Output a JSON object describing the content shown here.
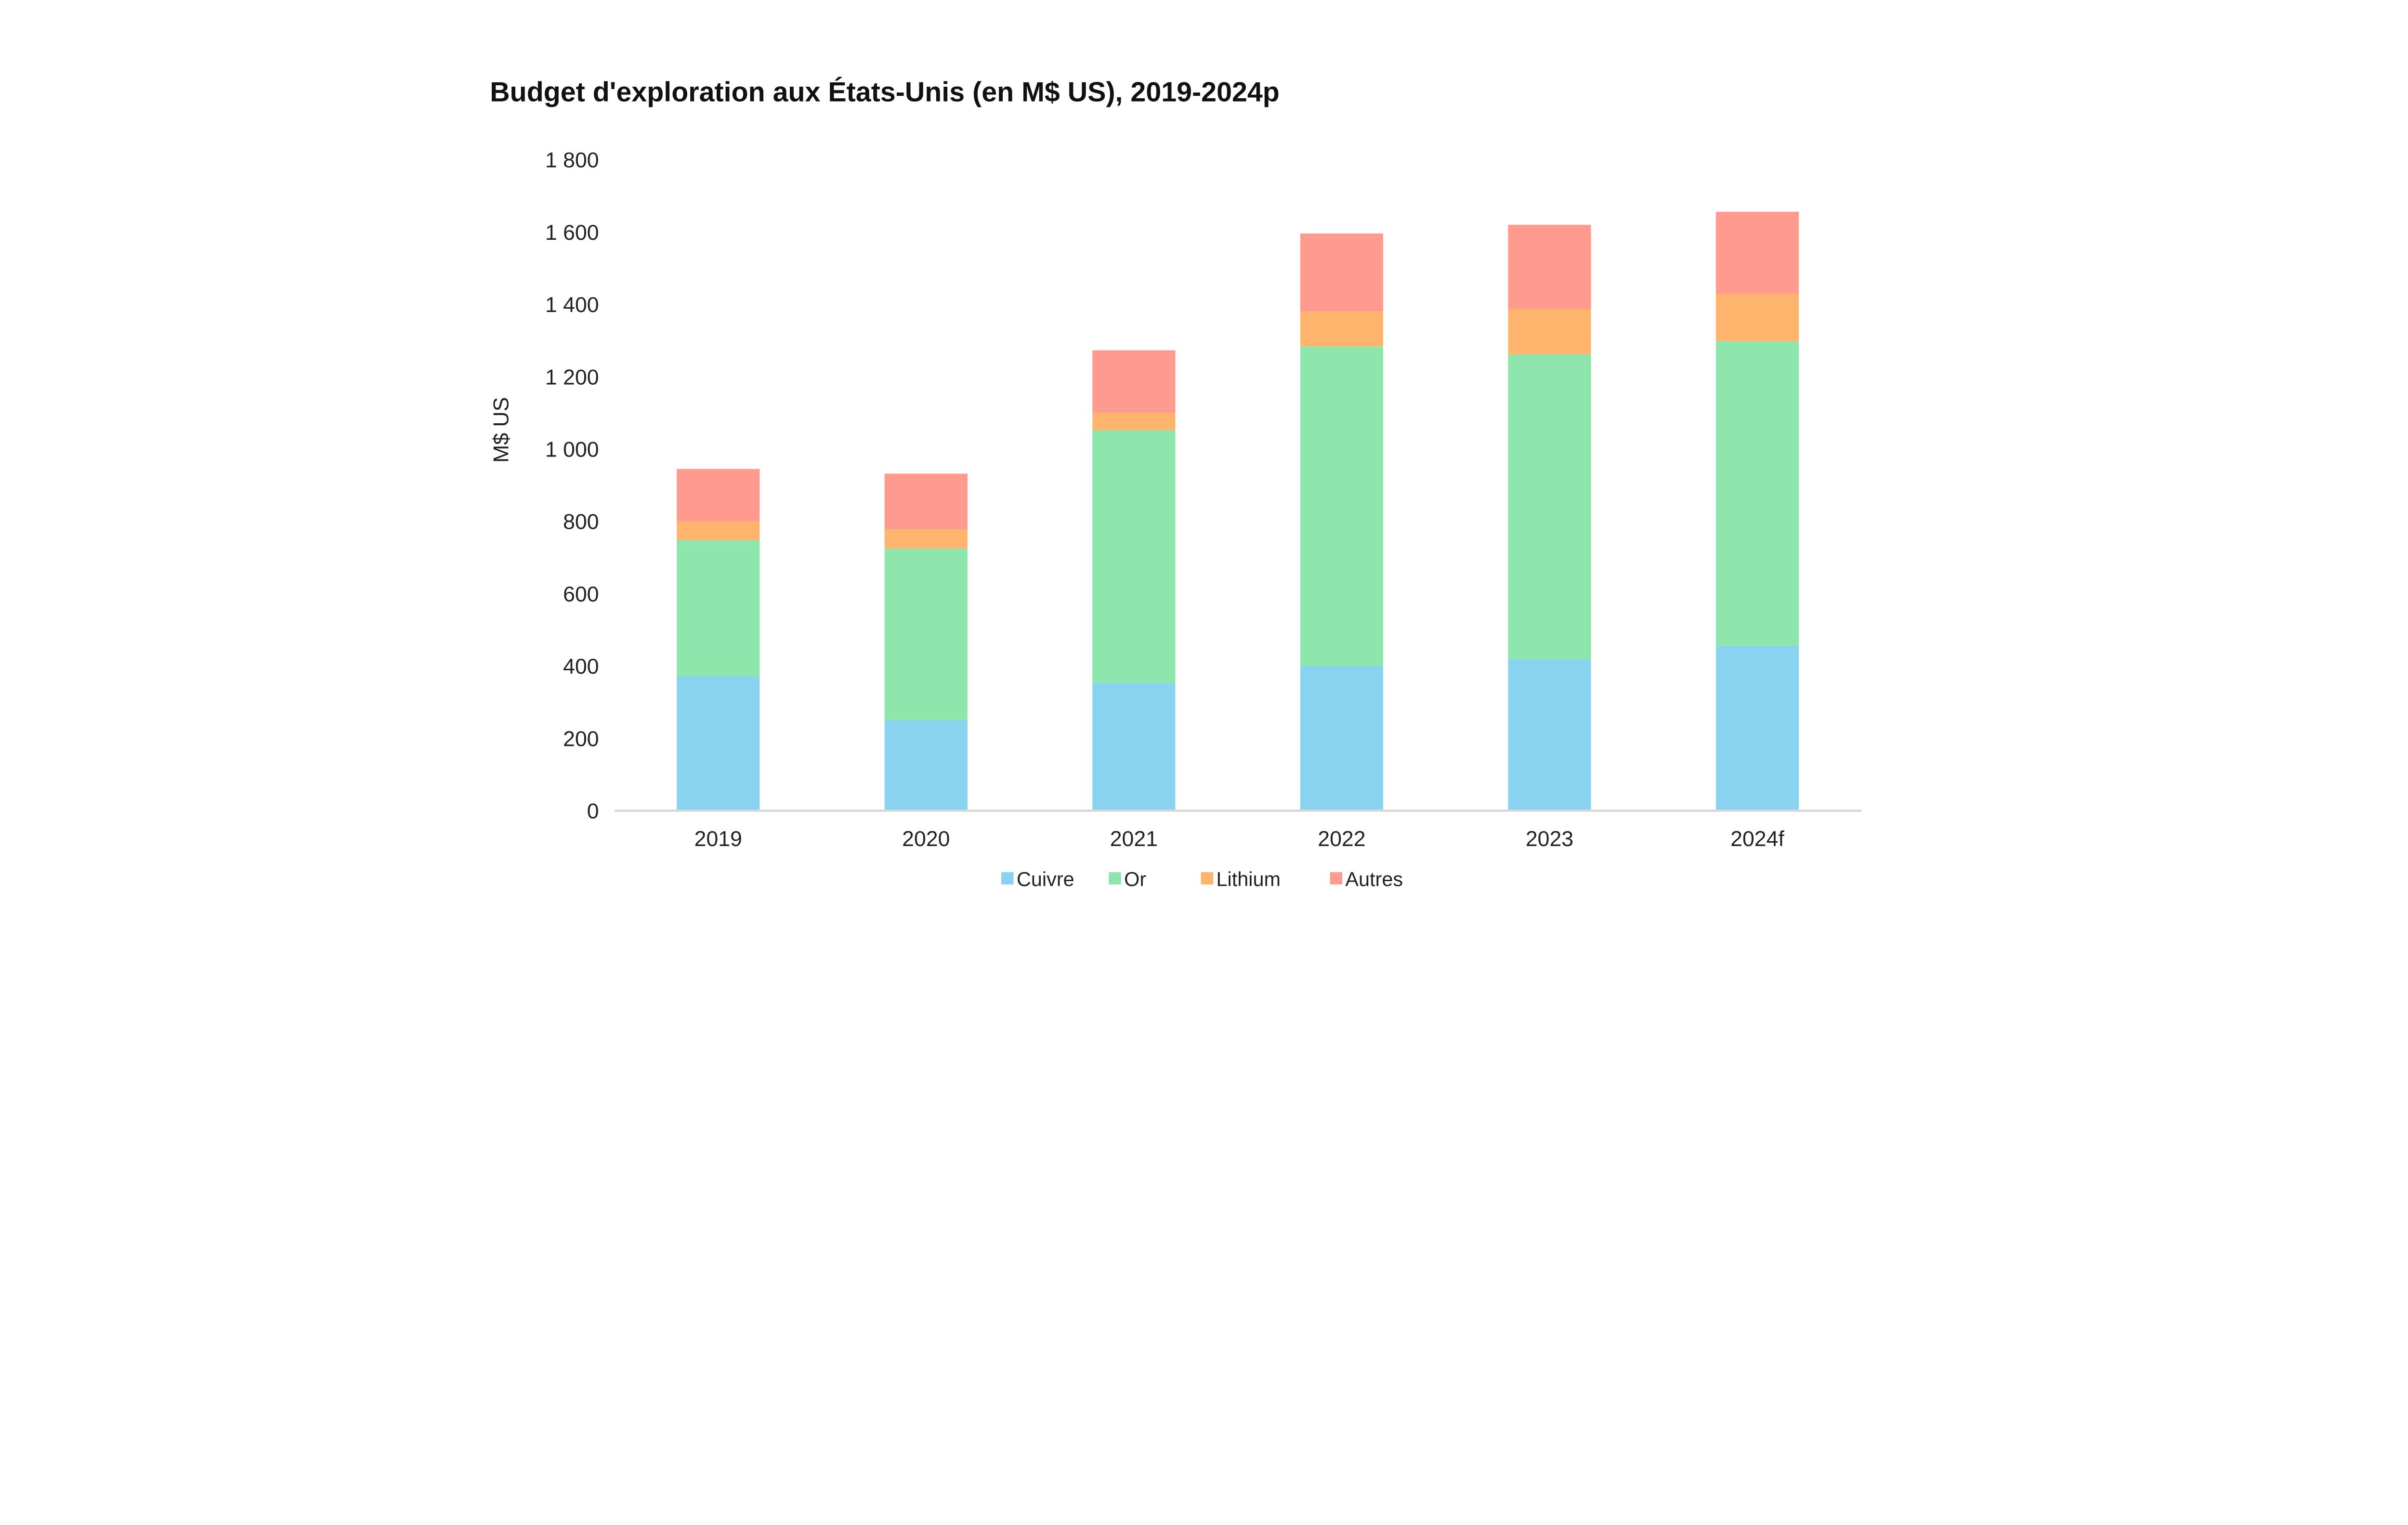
{
  "chart_data": {
    "type": "bar",
    "stacked": true,
    "title": "Budget d'exploration aux États-Unis (en M$ US), 2019-2024p",
    "xlabel": "",
    "ylabel": "M$ US",
    "ylim": [
      0,
      1800
    ],
    "yticks": [
      0,
      200,
      400,
      600,
      800,
      1000,
      1200,
      1400,
      1600,
      1800
    ],
    "ytick_labels": [
      "0",
      "200",
      "400",
      "600",
      "800",
      "1 000",
      "1 200",
      "1 400",
      "1 600",
      "1 800"
    ],
    "grid": false,
    "legend_position": "bottom",
    "categories": [
      "2019",
      "2020",
      "2021",
      "2022",
      "2023",
      "2024f"
    ],
    "series": [
      {
        "name": "Cuivre",
        "color": "#89d3f0",
        "values": [
          371,
          250,
          353,
          401,
          419,
          456
        ]
      },
      {
        "name": "Or",
        "color": "#8ee6ad",
        "values": [
          377,
          475,
          699,
          883,
          843,
          842
        ]
      },
      {
        "name": "Lithium",
        "color": "#ffb46d",
        "values": [
          52,
          53,
          48,
          97,
          125,
          132
        ]
      },
      {
        "name": "Autres",
        "color": "#ff9a8f",
        "values": [
          145,
          154,
          173,
          215,
          233,
          226
        ]
      }
    ]
  }
}
